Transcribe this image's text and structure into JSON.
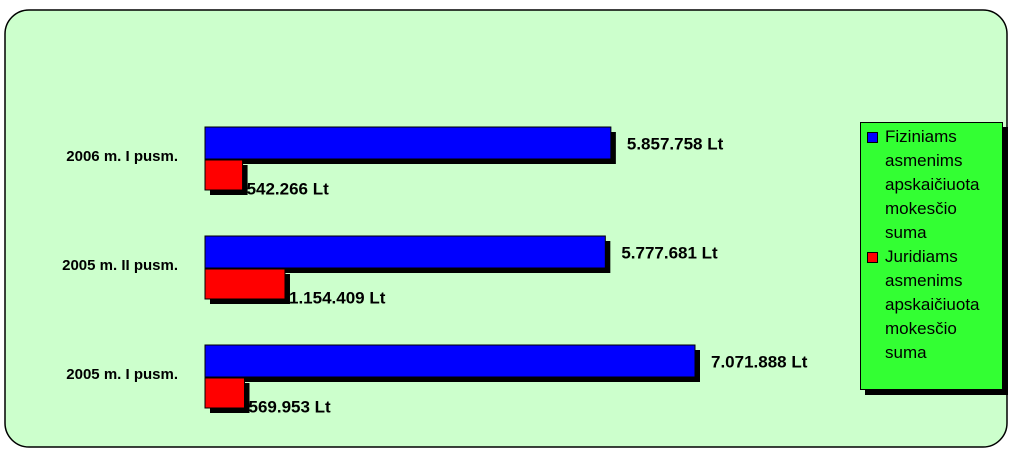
{
  "chart_data": {
    "type": "barh",
    "categories": [
      "2006 m. I pusm.",
      "2005 m. II pusm.",
      "2005 m. I pusm."
    ],
    "series": [
      {
        "name": "Fiziniams asmenims apskaičiuota mokesčio suma",
        "color": "#0000ff",
        "values": [
          5857758,
          5777681,
          7071888
        ],
        "value_labels": [
          "5.857.758 Lt",
          "5.777.681 Lt",
          "7.071.888 Lt"
        ]
      },
      {
        "name": "Juridiams asmenims apskaičiuota mokesčio suma",
        "color": "#ff0000",
        "values": [
          542266,
          1154409,
          569953
        ],
        "value_labels": [
          "542.266 Lt",
          "1.154.409 Lt",
          "569.953 Lt"
        ]
      }
    ],
    "legend": "right"
  }
}
